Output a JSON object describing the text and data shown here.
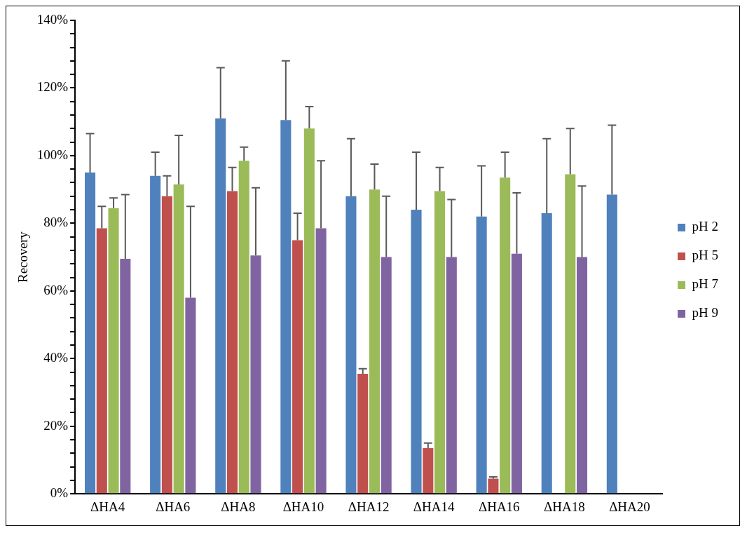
{
  "chart_data": {
    "type": "bar",
    "ylabel": "Recovery",
    "categories": [
      "ΔHA4",
      "ΔHA6",
      "ΔHA8",
      "ΔHA10",
      "ΔHA12",
      "ΔHA14",
      "ΔHA16",
      "ΔHA18",
      "ΔHA20"
    ],
    "series": [
      {
        "name": "pH 2",
        "color": "#4f81bd",
        "values": [
          95,
          94,
          111,
          110.5,
          88,
          84,
          82,
          83,
          88.5
        ],
        "errors": [
          [
            95,
            106.5
          ],
          [
            94,
            101
          ],
          [
            111,
            126
          ],
          [
            110.5,
            128
          ],
          [
            88,
            105
          ],
          [
            84,
            101
          ],
          [
            82,
            97
          ],
          [
            83,
            105
          ],
          [
            88.5,
            109
          ]
        ]
      },
      {
        "name": "pH 5",
        "color": "#c0504d",
        "values": [
          78.5,
          88,
          89.5,
          75,
          35.5,
          13.5,
          4.5,
          null,
          null
        ],
        "errors": [
          [
            78.5,
            85
          ],
          [
            88,
            94
          ],
          [
            89.5,
            96.5
          ],
          [
            75,
            83
          ],
          [
            35.5,
            37
          ],
          [
            13.5,
            15
          ],
          [
            4.5,
            5
          ],
          null,
          null
        ]
      },
      {
        "name": "pH 7",
        "color": "#9bbb59",
        "values": [
          84.5,
          91.5,
          98.5,
          108,
          90,
          89.5,
          93.5,
          94.5,
          null
        ],
        "errors": [
          [
            84.5,
            87.5
          ],
          [
            91.5,
            106
          ],
          [
            98.5,
            102.5
          ],
          [
            108,
            114.5
          ],
          [
            90,
            97.5
          ],
          [
            89.5,
            96.5
          ],
          [
            93.5,
            101
          ],
          [
            94.5,
            108
          ],
          null
        ]
      },
      {
        "name": "pH 9",
        "color": "#8064a2",
        "values": [
          69.5,
          58,
          70.5,
          78.5,
          70,
          70,
          71,
          70,
          null
        ],
        "errors": [
          [
            69.5,
            88.5
          ],
          [
            58,
            85
          ],
          [
            70.5,
            90.5
          ],
          [
            78.5,
            98.5
          ],
          [
            70,
            88
          ],
          [
            70,
            87
          ],
          [
            71,
            89
          ],
          [
            70,
            91
          ],
          null
        ]
      }
    ],
    "ylim": [
      0,
      140
    ],
    "yticks": [
      {
        "value": 0,
        "label": "0%"
      },
      {
        "value": 4,
        "label": null
      },
      {
        "value": 8,
        "label": null
      },
      {
        "value": 12,
        "label": null
      },
      {
        "value": 16,
        "label": null
      },
      {
        "value": 20,
        "label": "20%"
      },
      {
        "value": 24,
        "label": null
      },
      {
        "value": 28,
        "label": null
      },
      {
        "value": 32,
        "label": null
      },
      {
        "value": 36,
        "label": null
      },
      {
        "value": 40,
        "label": "40%"
      },
      {
        "value": 44,
        "label": null
      },
      {
        "value": 48,
        "label": null
      },
      {
        "value": 52,
        "label": null
      },
      {
        "value": 56,
        "label": null
      },
      {
        "value": 60,
        "label": "60%"
      },
      {
        "value": 64,
        "label": null
      },
      {
        "value": 68,
        "label": null
      },
      {
        "value": 72,
        "label": null
      },
      {
        "value": 76,
        "label": null
      },
      {
        "value": 80,
        "label": "80%"
      },
      {
        "value": 84,
        "label": null
      },
      {
        "value": 88,
        "label": null
      },
      {
        "value": 92,
        "label": null
      },
      {
        "value": 96,
        "label": null
      },
      {
        "value": 100,
        "label": "100%"
      },
      {
        "value": 104,
        "label": null
      },
      {
        "value": 108,
        "label": null
      },
      {
        "value": 112,
        "label": null
      },
      {
        "value": 116,
        "label": null
      },
      {
        "value": 120,
        "label": "120%"
      },
      {
        "value": 124,
        "label": null
      },
      {
        "value": 128,
        "label": null
      },
      {
        "value": 132,
        "label": null
      },
      {
        "value": 136,
        "label": null
      },
      {
        "value": 140,
        "label": "140%"
      }
    ],
    "grid": false,
    "legend": "right"
  }
}
